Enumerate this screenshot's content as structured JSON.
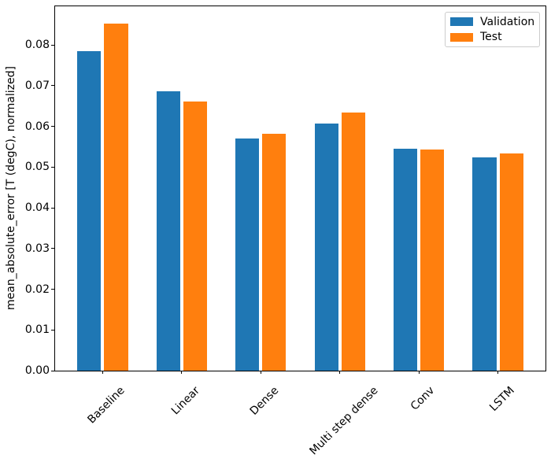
{
  "figure": {
    "background": "#ffffff",
    "axis_color": "#000000"
  },
  "chart_data": {
    "type": "bar",
    "title": "",
    "xlabel": "",
    "ylabel": "mean_absolute_error [T (degC), normalized]",
    "categories": [
      "Baseline",
      "Linear",
      "Dense",
      "Multi step dense",
      "Conv",
      "LSTM"
    ],
    "series": [
      {
        "name": "Validation",
        "color": "#1f77b4",
        "values": [
          0.0785,
          0.0686,
          0.0571,
          0.0607,
          0.0545,
          0.0524
        ]
      },
      {
        "name": "Test",
        "color": "#ff7f0e",
        "values": [
          0.0852,
          0.0662,
          0.0582,
          0.0634,
          0.0543,
          0.0533
        ]
      }
    ],
    "ylim": [
      0,
      0.0895
    ],
    "xlim": [
      -0.602,
      5.602
    ],
    "yticks": [
      "0.00",
      "0.01",
      "0.02",
      "0.03",
      "0.04",
      "0.05",
      "0.06",
      "0.07",
      "0.08"
    ],
    "bar_width": 0.3,
    "group_offset": 0.17,
    "x_tick_rotation_deg": 45,
    "grid": false,
    "legend": {
      "location": "upper right",
      "entries": [
        "Validation",
        "Test"
      ]
    }
  }
}
